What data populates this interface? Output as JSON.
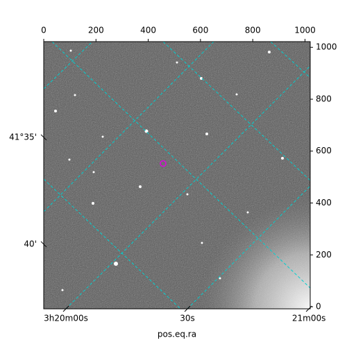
{
  "chart_data": {
    "type": "image",
    "xlabel": "pos.eq.ra",
    "xlim": [
      0,
      1020
    ],
    "ylim": [
      -8,
      1022
    ],
    "xticks": [
      0,
      200,
      400,
      600,
      800,
      1000
    ],
    "yticks": [
      0,
      200,
      400,
      600,
      800,
      1000
    ],
    "world_xticks": [
      {
        "value": 85,
        "label": "3h20m00s"
      },
      {
        "value": 550,
        "label": "30s"
      },
      {
        "value": 1015,
        "label": "21m00s"
      }
    ],
    "world_yticks": [
      {
        "value": 653,
        "label": "41°35'"
      },
      {
        "value": 241,
        "label": "40'"
      }
    ],
    "marker": {
      "x": 457,
      "y": 552,
      "color": "#e000e0"
    },
    "grid_color": "#00d0d0"
  }
}
